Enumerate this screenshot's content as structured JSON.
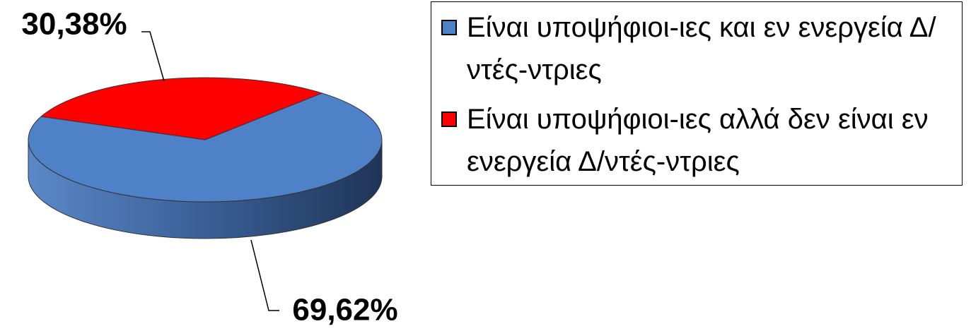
{
  "chart_data": {
    "type": "pie",
    "categories": [
      "Είναι υποψήφιοι-ιες και εν ενεργεία Δ/ντές-ντριες",
      "Είναι υποψήφιοι-ιες αλλά δεν είναι εν ενεργεία Δ/ντές-ντριες"
    ],
    "values": [
      69.62,
      30.38
    ],
    "value_labels": [
      "69,62%",
      "30,38%"
    ],
    "colors": [
      "#4f81c9",
      "#ff0000"
    ],
    "legend": "right"
  }
}
